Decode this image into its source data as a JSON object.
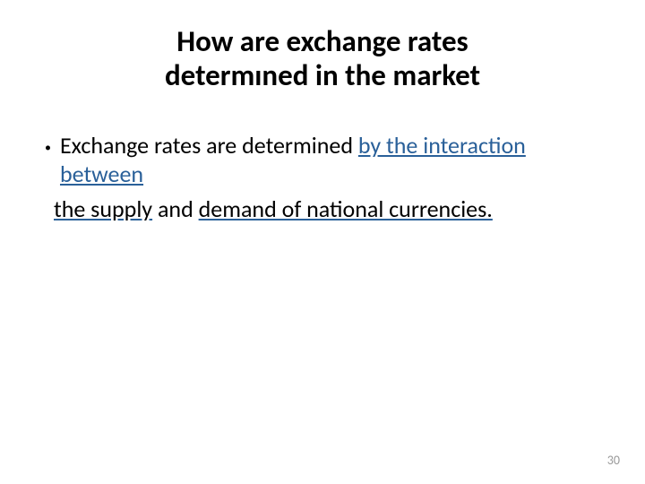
{
  "title": {
    "line1": "How are exchange rates",
    "line2": "determıned in the market",
    "fontsize": 33,
    "color": "#000000",
    "fontweight": 700
  },
  "bullet": {
    "marker": "•",
    "text_black": "Exchange rates are determined ",
    "text_link1": "by the interaction between",
    "fontsize": 26,
    "color_black": "#000000",
    "color_link": "#2a6099"
  },
  "continuation": {
    "part1": "the supply",
    "part2": " and ",
    "part3": "demand of national currencies.",
    "fontsize": 26,
    "color_text": "#000000",
    "color_link": "#2a6099"
  },
  "page_number": {
    "value": "30",
    "fontsize": 14,
    "color": "#9a9a9a"
  },
  "background_color": "#ffffff"
}
